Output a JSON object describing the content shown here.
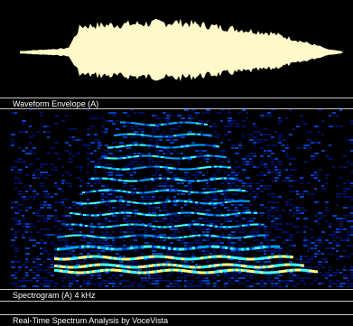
{
  "panels": {
    "waveform": {
      "label": "Waveform Envelope (A)",
      "fill_color": "#fff8c8"
    },
    "spectrogram": {
      "label": "Spectrogram (A)   4 kHz",
      "colors": [
        "#001060",
        "#0040c0",
        "#00a0ff",
        "#40ffff",
        "#ffff80"
      ]
    }
  },
  "status": {
    "text": "Real-Time Spectrum Analysis by VoceVista"
  }
}
